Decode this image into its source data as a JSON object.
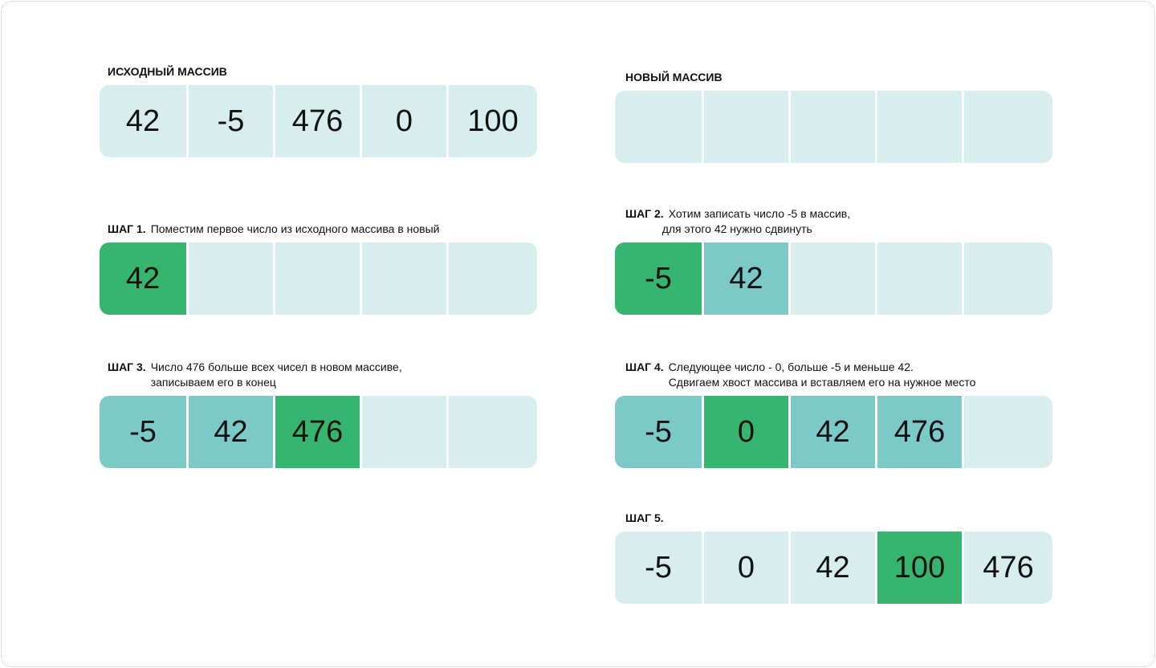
{
  "source": {
    "title": "ИСХОДНЫЙ МАССИВ",
    "cells": [
      {
        "value": "42",
        "state": "empty"
      },
      {
        "value": "-5",
        "state": "empty"
      },
      {
        "value": "476",
        "state": "empty"
      },
      {
        "value": "0",
        "state": "empty"
      },
      {
        "value": "100",
        "state": "empty"
      }
    ]
  },
  "target": {
    "title": "НОВЫЙ МАССИВ",
    "cells": [
      {
        "value": "",
        "state": "empty"
      },
      {
        "value": "",
        "state": "empty"
      },
      {
        "value": "",
        "state": "empty"
      },
      {
        "value": "",
        "state": "empty"
      },
      {
        "value": "",
        "state": "empty"
      }
    ]
  },
  "step1": {
    "step": "ШАГ 1.",
    "lines": [
      "Поместим первое число из исходного массива в новый"
    ],
    "cells": [
      {
        "value": "42",
        "state": "green"
      },
      {
        "value": "",
        "state": "empty"
      },
      {
        "value": "",
        "state": "empty"
      },
      {
        "value": "",
        "state": "empty"
      },
      {
        "value": "",
        "state": "empty"
      }
    ]
  },
  "step2": {
    "step": "ШАГ 2.",
    "lines": [
      "Хотим записать число -5 в массив,",
      "для этого 42 нужно сдвинуть"
    ],
    "cells": [
      {
        "value": "-5",
        "state": "green"
      },
      {
        "value": "42",
        "state": "teal"
      },
      {
        "value": "",
        "state": "empty"
      },
      {
        "value": "",
        "state": "empty"
      },
      {
        "value": "",
        "state": "empty"
      }
    ]
  },
  "step3": {
    "step": "ШАГ 3.",
    "lines": [
      "Число 476 больше всех чисел в новом массиве,",
      "записываем его в конец"
    ],
    "cells": [
      {
        "value": "-5",
        "state": "teal"
      },
      {
        "value": "42",
        "state": "teal"
      },
      {
        "value": "476",
        "state": "green"
      },
      {
        "value": "",
        "state": "empty"
      },
      {
        "value": "",
        "state": "empty"
      }
    ]
  },
  "step4": {
    "step": "ШАГ 4.",
    "lines": [
      "Следующее число - 0, больше -5 и меньше 42.",
      "Сдвигаем хвост массива и вставляем его на нужное место"
    ],
    "cells": [
      {
        "value": "-5",
        "state": "teal"
      },
      {
        "value": "0",
        "state": "green"
      },
      {
        "value": "42",
        "state": "teal"
      },
      {
        "value": "476",
        "state": "teal"
      },
      {
        "value": "",
        "state": "empty"
      }
    ]
  },
  "step5": {
    "step": "ШАГ 5.",
    "lines": [],
    "cells": [
      {
        "value": "-5",
        "state": "empty"
      },
      {
        "value": "0",
        "state": "empty"
      },
      {
        "value": "42",
        "state": "empty"
      },
      {
        "value": "100",
        "state": "green"
      },
      {
        "value": "476",
        "state": "empty"
      }
    ]
  },
  "colors": {
    "empty": "#d8eeee",
    "teal": "#7ccac8",
    "green": "#35b56e"
  }
}
